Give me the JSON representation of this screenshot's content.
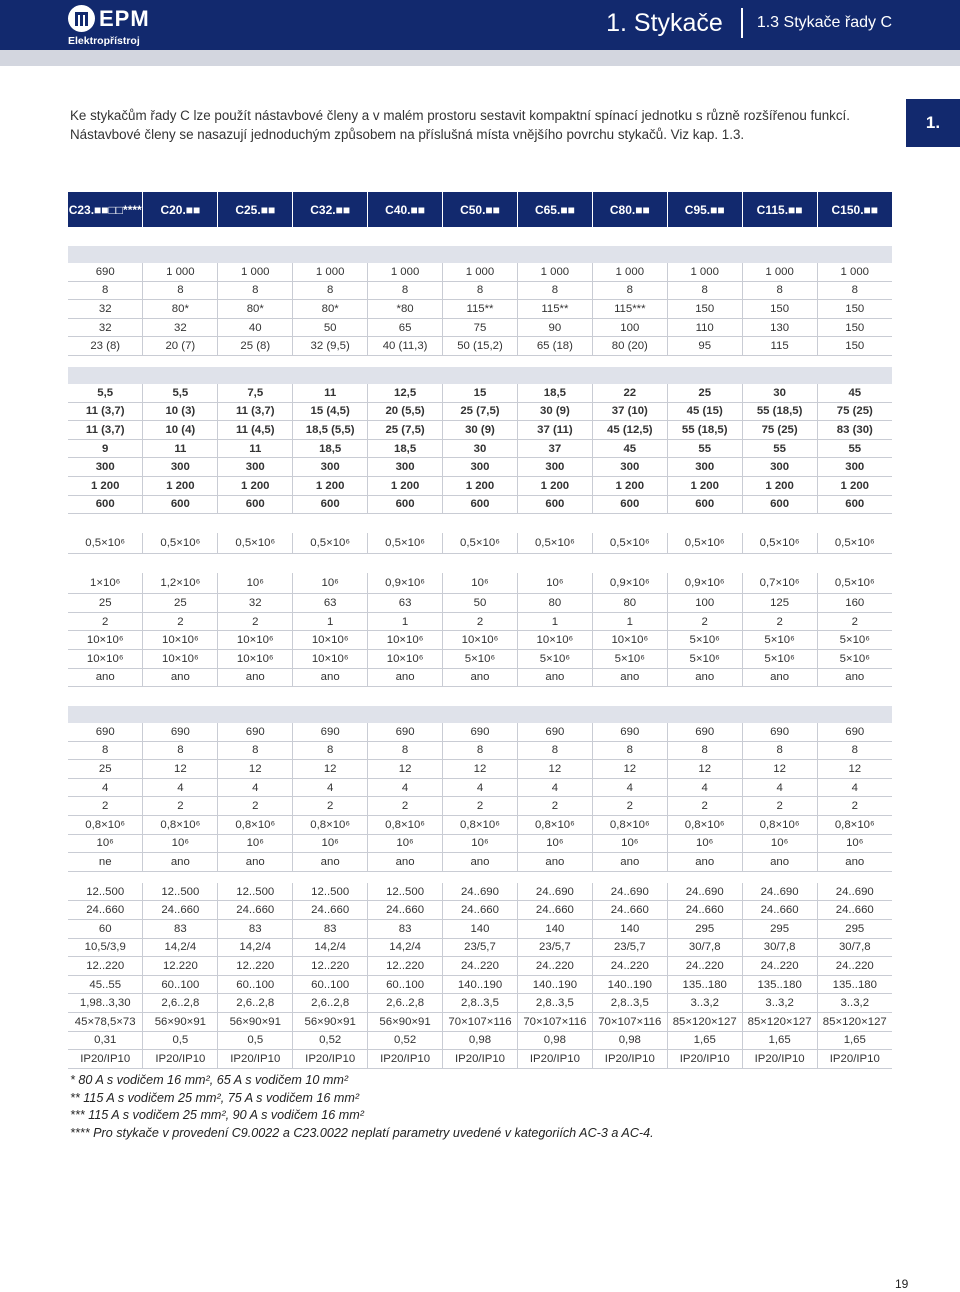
{
  "brand": {
    "name": "EPM",
    "subtitle": "Elektropřístroj"
  },
  "header": {
    "chapter": "1. Stykače",
    "section": "1.3 Stykače řady C"
  },
  "chapter_tab": "1.",
  "intro": "Ke stykačům řady C lze použít nástavbové členy a v malém prostoru sestavit kompaktní spínací jednotku s různě rozšířenou funkcí. Nástavbové členy se nasazují jednoduchým způsobem na příslušná místa vnějšího povrchu stykačů. Viz kap. 1.3.",
  "table": {
    "headers": [
      "C23.■■□□****",
      "C20.■■",
      "C25.■■",
      "C32.■■",
      "C40.■■",
      "C50.■■",
      "C65.■■",
      "C80.■■",
      "C95.■■",
      "C115.■■",
      "C150.■■"
    ],
    "block1": [
      [
        "690",
        "1 000",
        "1 000",
        "1 000",
        "1 000",
        "1 000",
        "1 000",
        "1 000",
        "1 000",
        "1 000",
        "1 000"
      ],
      [
        "8",
        "8",
        "8",
        "8",
        "8",
        "8",
        "8",
        "8",
        "8",
        "8",
        "8"
      ],
      [
        "32",
        "80*",
        "80*",
        "80*",
        "*80",
        "115**",
        "115**",
        "115***",
        "150",
        "150",
        "150"
      ],
      [
        "32",
        "32",
        "40",
        "50",
        "65",
        "75",
        "90",
        "100",
        "110",
        "130",
        "150"
      ],
      [
        "23 (8)",
        "20 (7)",
        "25 (8)",
        "32 (9,5)",
        "40 (11,3)",
        "50 (15,2)",
        "65 (18)",
        "80 (20)",
        "95",
        "115",
        "150"
      ]
    ],
    "block2": [
      [
        "5,5",
        "5,5",
        "7,5",
        "11",
        "12,5",
        "15",
        "18,5",
        "22",
        "25",
        "30",
        "45"
      ],
      [
        "11 (3,7)",
        "10 (3)",
        "11 (3,7)",
        "15 (4,5)",
        "20 (5,5)",
        "25 (7,5)",
        "30 (9)",
        "37 (10)",
        "45 (15)",
        "55 (18,5)",
        "75 (25)"
      ],
      [
        "11 (3,7)",
        "10 (4)",
        "11 (4,5)",
        "18,5 (5,5)",
        "25 (7,5)",
        "30 (9)",
        "37 (11)",
        "45 (12,5)",
        "55 (18,5)",
        "75 (25)",
        "83 (30)"
      ],
      [
        "9",
        "11",
        "11",
        "18,5",
        "18,5",
        "30",
        "37",
        "45",
        "55",
        "55",
        "55"
      ],
      [
        "300",
        "300",
        "300",
        "300",
        "300",
        "300",
        "300",
        "300",
        "300",
        "300",
        "300"
      ],
      [
        "1 200",
        "1 200",
        "1 200",
        "1 200",
        "1 200",
        "1 200",
        "1 200",
        "1 200",
        "1 200",
        "1 200",
        "1 200"
      ],
      [
        "600",
        "600",
        "600",
        "600",
        "600",
        "600",
        "600",
        "600",
        "600",
        "600",
        "600"
      ]
    ],
    "mech_life": [
      "0,5×10⁶",
      "0,5×10⁶",
      "0,5×10⁶",
      "0,5×10⁶",
      "0,5×10⁶",
      "0,5×10⁶",
      "0,5×10⁶",
      "0,5×10⁶",
      "0,5×10⁶",
      "0,5×10⁶",
      "0,5×10⁶"
    ],
    "elec_life": [
      "1×10⁶",
      "1,2×10⁶",
      "10⁶",
      "10⁶",
      "0,9×10⁶",
      "10⁶",
      "10⁶",
      "0,9×10⁶",
      "0,9×10⁶",
      "0,7×10⁶",
      "0,5×10⁶"
    ],
    "block3": [
      [
        "25",
        "25",
        "32",
        "63",
        "63",
        "50",
        "80",
        "80",
        "100",
        "125",
        "160"
      ],
      [
        "2",
        "2",
        "2",
        "1",
        "1",
        "2",
        "1",
        "1",
        "2",
        "2",
        "2"
      ],
      [
        "10×10⁶",
        "10×10⁶",
        "10×10⁶",
        "10×10⁶",
        "10×10⁶",
        "10×10⁶",
        "10×10⁶",
        "10×10⁶",
        "5×10⁶",
        "5×10⁶",
        "5×10⁶"
      ],
      [
        "10×10⁶",
        "10×10⁶",
        "10×10⁶",
        "10×10⁶",
        "10×10⁶",
        "5×10⁶",
        "5×10⁶",
        "5×10⁶",
        "5×10⁶",
        "5×10⁶",
        "5×10⁶"
      ],
      [
        "ano",
        "ano",
        "ano",
        "ano",
        "ano",
        "ano",
        "ano",
        "ano",
        "ano",
        "ano",
        "ano"
      ]
    ],
    "block4": [
      [
        "690",
        "690",
        "690",
        "690",
        "690",
        "690",
        "690",
        "690",
        "690",
        "690",
        "690"
      ],
      [
        "8",
        "8",
        "8",
        "8",
        "8",
        "8",
        "8",
        "8",
        "8",
        "8",
        "8"
      ],
      [
        "25",
        "12",
        "12",
        "12",
        "12",
        "12",
        "12",
        "12",
        "12",
        "12",
        "12"
      ],
      [
        "4",
        "4",
        "4",
        "4",
        "4",
        "4",
        "4",
        "4",
        "4",
        "4",
        "4"
      ],
      [
        "2",
        "2",
        "2",
        "2",
        "2",
        "2",
        "2",
        "2",
        "2",
        "2",
        "2"
      ],
      [
        "0,8×10⁶",
        "0,8×10⁶",
        "0,8×10⁶",
        "0,8×10⁶",
        "0,8×10⁶",
        "0,8×10⁶",
        "0,8×10⁶",
        "0,8×10⁶",
        "0,8×10⁶",
        "0,8×10⁶",
        "0,8×10⁶"
      ],
      [
        "10⁶",
        "10⁶",
        "10⁶",
        "10⁶",
        "10⁶",
        "10⁶",
        "10⁶",
        "10⁶",
        "10⁶",
        "10⁶",
        "10⁶"
      ],
      [
        "ne",
        "ano",
        "ano",
        "ano",
        "ano",
        "ano",
        "ano",
        "ano",
        "ano",
        "ano",
        "ano"
      ]
    ],
    "block5": [
      [
        "12..500",
        "12..500",
        "12..500",
        "12..500",
        "12..500",
        "24..690",
        "24..690",
        "24..690",
        "24..690",
        "24..690",
        "24..690"
      ],
      [
        "24..660",
        "24..660",
        "24..660",
        "24..660",
        "24..660",
        "24..660",
        "24..660",
        "24..660",
        "24..660",
        "24..660",
        "24..660"
      ],
      [
        "60",
        "83",
        "83",
        "83",
        "83",
        "140",
        "140",
        "140",
        "295",
        "295",
        "295"
      ],
      [
        "10,5/3,9",
        "14,2/4",
        "14,2/4",
        "14,2/4",
        "14,2/4",
        "23/5,7",
        "23/5,7",
        "23/5,7",
        "30/7,8",
        "30/7,8",
        "30/7,8"
      ],
      [
        "12..220",
        "12.220",
        "12..220",
        "12..220",
        "12..220",
        "24..220",
        "24..220",
        "24..220",
        "24..220",
        "24..220",
        "24..220"
      ],
      [
        "45..55",
        "60..100",
        "60..100",
        "60..100",
        "60..100",
        "140..190",
        "140..190",
        "140..190",
        "135..180",
        "135..180",
        "135..180"
      ],
      [
        "1,98..3,30",
        "2,6..2,8",
        "2,6..2,8",
        "2,6..2,8",
        "2,6..2,8",
        "2,8..3,5",
        "2,8..3,5",
        "2,8..3,5",
        "3..3,2",
        "3..3,2",
        "3..3,2"
      ],
      [
        "45×78,5×73",
        "56×90×91",
        "56×90×91",
        "56×90×91",
        "56×90×91",
        "70×107×116",
        "70×107×116",
        "70×107×116",
        "85×120×127",
        "85×120×127",
        "85×120×127"
      ],
      [
        "0,31",
        "0,5",
        "0,5",
        "0,52",
        "0,52",
        "0,98",
        "0,98",
        "0,98",
        "1,65",
        "1,65",
        "1,65"
      ],
      [
        "IP20/IP10",
        "IP20/IP10",
        "IP20/IP10",
        "IP20/IP10",
        "IP20/IP10",
        "IP20/IP10",
        "IP20/IP10",
        "IP20/IP10",
        "IP20/IP10",
        "IP20/IP10",
        "IP20/IP10"
      ]
    ]
  },
  "footnotes": [
    "* 80 A s vodičem 16 mm², 65 A s vodičem 10 mm²",
    "** 115 A s vodičem 25 mm², 75 A s vodičem 16 mm²",
    "*** 115 A s vodičem 25 mm², 90 A s vodičem 16 mm²",
    "**** Pro stykače v provedení C9.0022 a C23.0022 neplatí parametry uvedené v kategoriích AC-3 a AC-4."
  ],
  "page_number": "19",
  "colors": {
    "brand_blue": "#12296e",
    "band_grey": "#dfe2ea",
    "rule": "#c9ccd4"
  }
}
